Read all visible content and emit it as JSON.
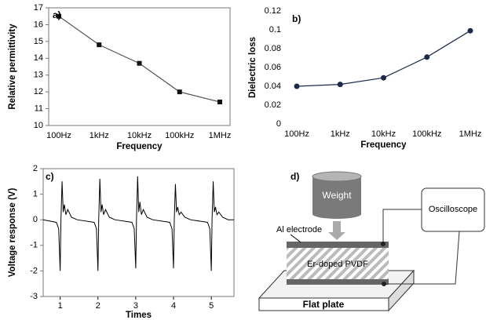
{
  "chart_data": [
    {
      "type": "line",
      "panel_label": "a)",
      "categories": [
        "100Hz",
        "1kHz",
        "10kHz",
        "100kHz",
        "1MHz"
      ],
      "values": [
        16.5,
        14.8,
        13.7,
        12.0,
        11.4
      ],
      "ylim": [
        10,
        17
      ],
      "yticks": [
        10,
        11,
        12,
        13,
        14,
        15,
        16,
        17
      ],
      "xlabel": "Frequency",
      "ylabel": "Relative permittivity",
      "color": "#555555",
      "marker": "square",
      "marker_color": "#111111",
      "frame": true
    },
    {
      "type": "line",
      "panel_label": "b)",
      "categories": [
        "100Hz",
        "1kHz",
        "10kHz",
        "100kHz",
        "1MHz"
      ],
      "values": [
        0.04,
        0.042,
        0.049,
        0.071,
        0.099
      ],
      "ylim": [
        0,
        0.12
      ],
      "yticks": [
        0,
        0.02,
        0.04,
        0.06,
        0.08,
        0.1,
        0.12
      ],
      "xlabel": "Frequency",
      "ylabel": "Dielectric loss",
      "color": "#1a2a4a",
      "marker": "circle",
      "marker_color": "#1a2a4a",
      "frame": false
    },
    {
      "type": "line",
      "panel_label": "c)",
      "x": [
        0.55,
        0.9,
        0.96,
        1,
        1.02,
        1.05,
        1.08,
        1.11,
        1.15,
        1.2,
        1.3,
        1.45,
        1.9,
        1.96,
        2,
        2.02,
        2.05,
        2.08,
        2.11,
        2.15,
        2.2,
        2.3,
        2.45,
        2.9,
        2.96,
        3,
        3.02,
        3.05,
        3.08,
        3.11,
        3.15,
        3.2,
        3.3,
        3.45,
        3.9,
        3.96,
        4,
        4.02,
        4.05,
        4.08,
        4.11,
        4.15,
        4.2,
        4.3,
        4.45,
        4.9,
        4.96,
        5,
        5.02,
        5.05,
        5.08,
        5.11,
        5.15,
        5.2,
        5.3,
        5.45,
        5.6
      ],
      "values": [
        0,
        -0.1,
        -0.35,
        -2.0,
        0,
        1.5,
        0.3,
        0.6,
        0.2,
        0.4,
        0.1,
        0,
        -0.1,
        -0.35,
        -2.0,
        0,
        1.6,
        0.3,
        0.6,
        0.2,
        0.4,
        0.1,
        0,
        -0.1,
        -0.35,
        -1.9,
        0,
        1.7,
        0.3,
        0.7,
        0.2,
        0.4,
        0.1,
        0,
        -0.1,
        -0.35,
        -1.9,
        0,
        1.4,
        0.3,
        0.5,
        0.2,
        0.3,
        0.1,
        0,
        -0.1,
        -0.35,
        -2.0,
        0,
        1.5,
        0.3,
        0.5,
        0.2,
        0.3,
        0.1,
        0,
        0
      ],
      "xlim": [
        0.55,
        5.6
      ],
      "xticks": [
        1,
        2,
        3,
        4,
        5
      ],
      "ylim": [
        -3,
        2
      ],
      "yticks": [
        -3,
        -2,
        -1,
        0,
        1,
        2
      ],
      "xlabel": "Times",
      "ylabel": "Voltage response (V)",
      "color": "#000000",
      "frame": true
    }
  ],
  "diagram": {
    "panel_label": "d)",
    "weight": "Weight",
    "instrument": "Oscilloscope",
    "electrode": "Al electrode",
    "film": "Er-doped PVDF",
    "base": "Flat plate"
  }
}
